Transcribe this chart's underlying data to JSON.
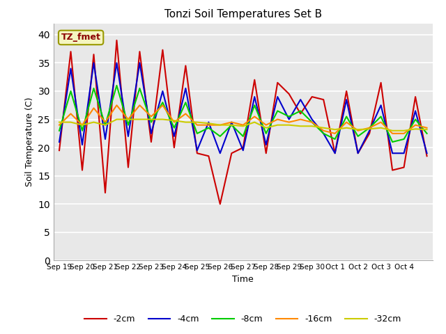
{
  "title": "Tonzi Soil Temperatures Set B",
  "xlabel": "Time",
  "ylabel": "Soil Temperature (C)",
  "ylim": [
    0,
    42
  ],
  "yticks": [
    0,
    5,
    10,
    15,
    20,
    25,
    30,
    35,
    40
  ],
  "annotation": "TZ_fmet",
  "fig_bg_color": "#ffffff",
  "plot_bg_color": "#e8e8e8",
  "legend_labels": [
    "-2cm",
    "-4cm",
    "-8cm",
    "-16cm",
    "-32cm"
  ],
  "line_colors": [
    "#cc0000",
    "#0000cc",
    "#00cc00",
    "#ff8800",
    "#cccc00"
  ],
  "x_tick_labels": [
    "Sep 19",
    "Sep 20",
    "Sep 21",
    "Sep 22",
    "Sep 23",
    "Sep 24",
    "Sep 25",
    "Sep 26",
    "Sep 27",
    "Sep 28",
    "Sep 29",
    "Sep 30",
    "Oct 1",
    "Oct 2",
    "Oct 3",
    "Oct 4"
  ],
  "series": {
    "-2cm": [
      19.5,
      37.0,
      16.0,
      36.5,
      12.0,
      39.0,
      16.5,
      37.0,
      21.0,
      37.3,
      20.0,
      34.5,
      19.0,
      18.5,
      10.0,
      19.0,
      20.0,
      32.0,
      19.0,
      31.5,
      29.5,
      26.0,
      29.0,
      28.5,
      19.0,
      30.0,
      19.0,
      22.5,
      31.5,
      16.0,
      16.5,
      29.0,
      18.5
    ],
    "-4cm": [
      21.0,
      34.0,
      20.5,
      35.0,
      21.5,
      35.0,
      22.0,
      35.0,
      22.5,
      30.0,
      22.0,
      30.5,
      19.5,
      24.5,
      19.0,
      24.5,
      19.5,
      29.0,
      20.5,
      29.0,
      25.0,
      28.5,
      25.0,
      22.5,
      19.0,
      28.5,
      19.0,
      23.0,
      27.5,
      19.0,
      19.0,
      26.5,
      19.0
    ],
    "-8cm": [
      23.0,
      30.0,
      23.0,
      30.5,
      24.0,
      31.0,
      24.0,
      30.5,
      24.5,
      28.0,
      23.5,
      28.0,
      22.5,
      23.5,
      22.0,
      24.0,
      22.0,
      27.5,
      22.5,
      26.5,
      25.5,
      26.5,
      24.5,
      22.5,
      21.5,
      25.5,
      22.0,
      23.5,
      25.5,
      21.0,
      21.5,
      25.0,
      22.5
    ],
    "-16cm": [
      24.0,
      26.0,
      24.0,
      27.0,
      24.5,
      27.5,
      25.0,
      27.5,
      25.5,
      27.5,
      24.5,
      26.0,
      24.0,
      24.0,
      24.0,
      24.5,
      24.0,
      25.5,
      24.0,
      25.0,
      24.5,
      25.0,
      24.5,
      23.0,
      22.5,
      24.5,
      23.0,
      23.5,
      24.5,
      22.5,
      22.5,
      24.0,
      23.5
    ],
    "-32cm": [
      24.5,
      24.5,
      24.0,
      24.5,
      24.0,
      25.0,
      25.0,
      25.0,
      25.0,
      25.0,
      24.8,
      24.5,
      24.5,
      24.3,
      24.0,
      24.0,
      23.8,
      24.5,
      23.5,
      24.0,
      24.0,
      23.8,
      23.8,
      23.5,
      23.2,
      23.5,
      23.2,
      23.3,
      23.5,
      23.0,
      23.0,
      23.3,
      23.2
    ]
  }
}
